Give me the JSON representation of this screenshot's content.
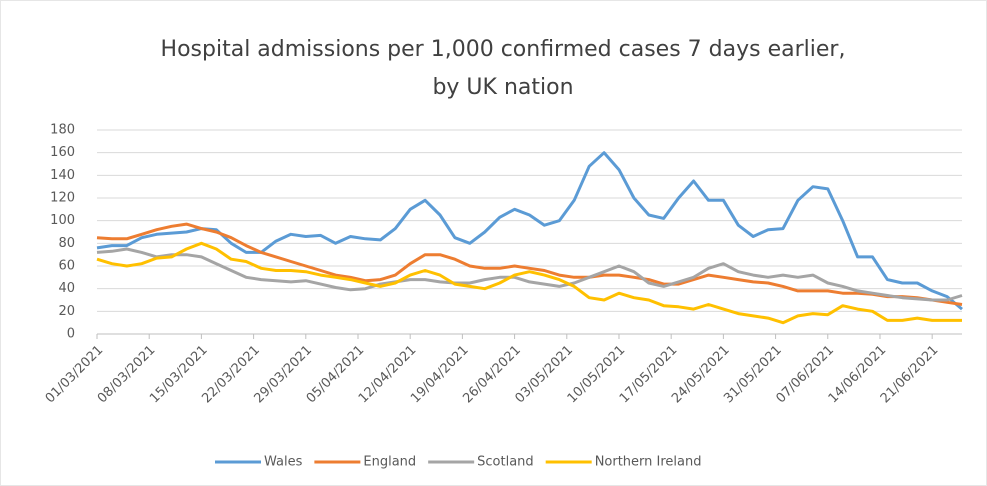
{
  "chart_data": {
    "type": "line",
    "title": [
      "Hospital admissions per 1,000 confirmed cases 7 days earlier,",
      "by UK nation"
    ],
    "x": [
      "01/03/2021",
      "03/03/2021",
      "05/03/2021",
      "07/03/2021",
      "09/03/2021",
      "11/03/2021",
      "13/03/2021",
      "15/03/2021",
      "17/03/2021",
      "19/03/2021",
      "21/03/2021",
      "23/03/2021",
      "25/03/2021",
      "27/03/2021",
      "29/03/2021",
      "31/03/2021",
      "02/04/2021",
      "04/04/2021",
      "06/04/2021",
      "08/04/2021",
      "10/04/2021",
      "12/04/2021",
      "14/04/2021",
      "16/04/2021",
      "18/04/2021",
      "20/04/2021",
      "22/04/2021",
      "24/04/2021",
      "26/04/2021",
      "28/04/2021",
      "30/04/2021",
      "02/05/2021",
      "04/05/2021",
      "06/05/2021",
      "08/05/2021",
      "10/05/2021",
      "12/05/2021",
      "14/05/2021",
      "16/05/2021",
      "18/05/2021",
      "20/05/2021",
      "22/05/2021",
      "24/05/2021",
      "26/05/2021",
      "28/05/2021",
      "30/05/2021",
      "01/06/2021",
      "03/06/2021",
      "05/06/2021",
      "07/06/2021",
      "09/06/2021",
      "11/06/2021",
      "13/06/2021",
      "15/06/2021",
      "17/06/2021",
      "19/06/2021",
      "21/06/2021",
      "23/06/2021",
      "25/06/2021"
    ],
    "series": [
      {
        "name": "Wales",
        "color": "#5b9bd5",
        "values": [
          76,
          78,
          78,
          85,
          88,
          89,
          90,
          93,
          92,
          80,
          72,
          72,
          82,
          88,
          86,
          87,
          80,
          86,
          84,
          83,
          93,
          110,
          118,
          105,
          85,
          80,
          90,
          103,
          110,
          105,
          96,
          100,
          118,
          148,
          160,
          145,
          120,
          105,
          102,
          120,
          135,
          118,
          118,
          96,
          86,
          92,
          93,
          118,
          130,
          128,
          100,
          68,
          68,
          48,
          45,
          45,
          38,
          33,
          22
        ]
      },
      {
        "name": "England",
        "color": "#ed7d31",
        "values": [
          85,
          84,
          84,
          88,
          92,
          95,
          97,
          93,
          90,
          85,
          78,
          72,
          68,
          64,
          60,
          56,
          52,
          50,
          47,
          48,
          52,
          62,
          70,
          70,
          66,
          60,
          58,
          58,
          60,
          58,
          56,
          52,
          50,
          50,
          52,
          52,
          50,
          48,
          44,
          44,
          48,
          52,
          50,
          48,
          46,
          45,
          42,
          38,
          38,
          38,
          36,
          36,
          35,
          33,
          33,
          32,
          30,
          28,
          26
        ]
      },
      {
        "name": "Scotland",
        "color": "#a5a5a5",
        "values": [
          72,
          73,
          75,
          72,
          68,
          70,
          70,
          68,
          62,
          56,
          50,
          48,
          47,
          46,
          47,
          44,
          41,
          39,
          40,
          44,
          46,
          48,
          48,
          46,
          45,
          45,
          48,
          50,
          50,
          46,
          44,
          42,
          45,
          50,
          55,
          60,
          55,
          45,
          42,
          46,
          50,
          58,
          62,
          55,
          52,
          50,
          52,
          50,
          52,
          45,
          42,
          38,
          36,
          34,
          32,
          31,
          30,
          30,
          34
        ]
      },
      {
        "name": "Northern Ireland",
        "color": "#ffc000",
        "values": [
          66,
          62,
          60,
          62,
          67,
          68,
          75,
          80,
          75,
          66,
          64,
          58,
          56,
          56,
          55,
          52,
          50,
          48,
          45,
          42,
          45,
          52,
          56,
          52,
          44,
          42,
          40,
          45,
          52,
          55,
          52,
          48,
          42,
          32,
          30,
          36,
          32,
          30,
          25,
          24,
          22,
          26,
          22,
          18,
          16,
          14,
          10,
          16,
          18,
          17,
          25,
          22,
          20,
          12,
          12,
          14,
          12,
          12,
          12
        ]
      }
    ],
    "xlim": [
      "01/03/2021",
      "25/06/2021"
    ],
    "xticks": [
      "01/03/2021",
      "08/03/2021",
      "15/03/2021",
      "22/03/2021",
      "29/03/2021",
      "05/04/2021",
      "12/04/2021",
      "19/04/2021",
      "26/04/2021",
      "03/05/2021",
      "10/05/2021",
      "17/05/2021",
      "24/05/2021",
      "31/05/2021",
      "07/06/2021",
      "14/06/2021",
      "21/06/2021"
    ],
    "ylim": [
      0,
      180
    ],
    "yticks": [
      0,
      20,
      40,
      60,
      80,
      100,
      120,
      140,
      160,
      180
    ],
    "grid": true,
    "legend": "bottom"
  }
}
